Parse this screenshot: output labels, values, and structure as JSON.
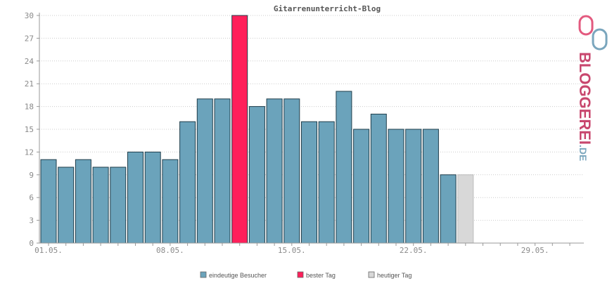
{
  "chart_data": {
    "type": "bar",
    "title": "Gitarrenunterricht-Blog",
    "ylim": [
      0,
      30
    ],
    "yticks": [
      0,
      3,
      6,
      9,
      12,
      15,
      18,
      21,
      24,
      27,
      30
    ],
    "x_tick_labels": [
      "01.05.",
      "08.05.",
      "15.05.",
      "22.05.",
      "29.05."
    ],
    "categories": [
      "01.05.",
      "02.05.",
      "03.05.",
      "04.05.",
      "05.05.",
      "06.05.",
      "07.05.",
      "08.05.",
      "09.05.",
      "10.05.",
      "11.05.",
      "12.05.",
      "13.05.",
      "14.05.",
      "15.05.",
      "16.05.",
      "17.05.",
      "18.05.",
      "19.05.",
      "20.05.",
      "21.05.",
      "22.05.",
      "23.05.",
      "24.05.",
      "25.05.",
      "26.05.",
      "27.05.",
      "28.05.",
      "29.05.",
      "30.05.",
      "31.05."
    ],
    "series": [
      {
        "name": "eindeutige Besucher",
        "color": "#6ba3bb",
        "values": [
          11,
          10,
          11,
          10,
          10,
          12,
          12,
          11,
          16,
          19,
          19,
          null,
          18,
          19,
          19,
          16,
          16,
          20,
          15,
          17,
          15,
          15,
          15,
          9,
          null,
          null,
          null,
          null,
          null,
          null,
          null
        ]
      },
      {
        "name": "bester Tag",
        "color": "#ff1f5a",
        "values": [
          null,
          null,
          null,
          null,
          null,
          null,
          null,
          null,
          null,
          null,
          null,
          30,
          null,
          null,
          null,
          null,
          null,
          null,
          null,
          null,
          null,
          null,
          null,
          null,
          null,
          null,
          null,
          null,
          null,
          null,
          null
        ]
      },
      {
        "name": "heutiger Tag",
        "color": "#d8d8d8",
        "values": [
          null,
          null,
          null,
          null,
          null,
          null,
          null,
          null,
          null,
          null,
          null,
          null,
          null,
          null,
          null,
          null,
          null,
          null,
          null,
          null,
          null,
          null,
          null,
          null,
          9,
          null,
          null,
          null,
          null,
          null,
          null
        ]
      }
    ],
    "grid": true,
    "legend_position": "bottom"
  },
  "logo": {
    "text": "BLOGGEREI",
    "suffix": ".DE"
  }
}
